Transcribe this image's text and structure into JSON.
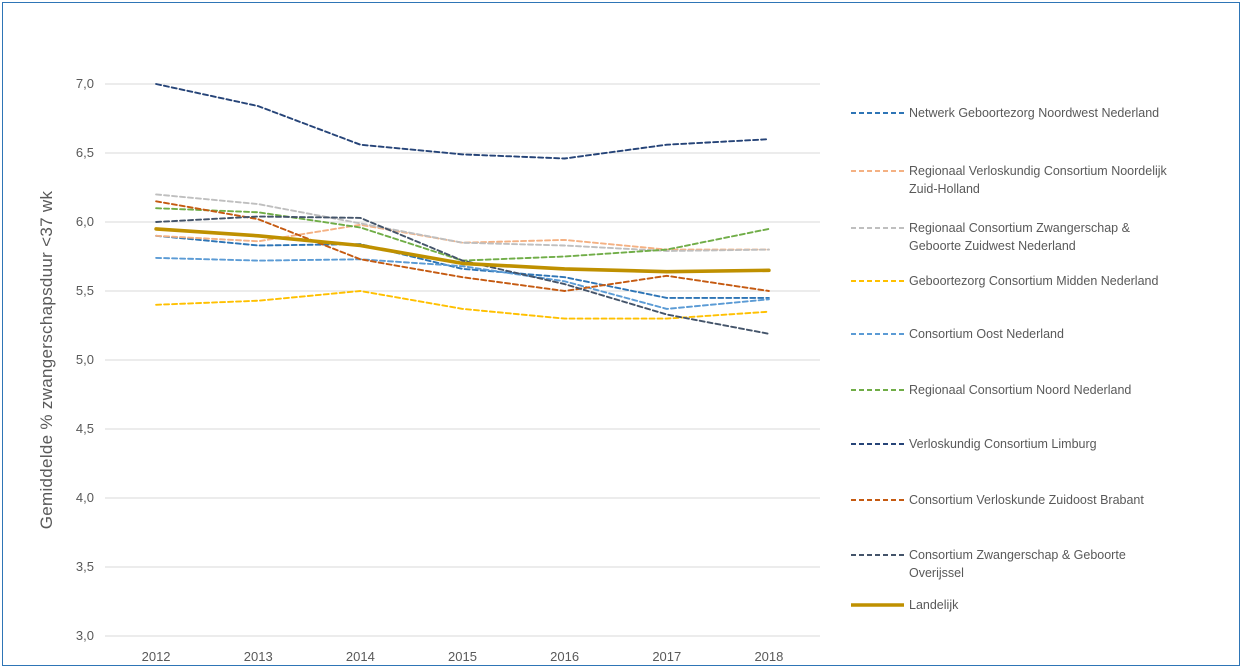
{
  "chart_data": {
    "type": "line",
    "title": "",
    "xlabel": "",
    "ylabel": "Gemiddelde  % zwangerschapsduur <37 wk",
    "x": [
      "2012",
      "2013",
      "2014",
      "2015",
      "2016",
      "2017",
      "2018"
    ],
    "ylim": [
      3.0,
      7.0
    ],
    "yticks": [
      "3,0",
      "3,5",
      "4,0",
      "4,5",
      "5,0",
      "5,5",
      "6,0",
      "6,5",
      "7,0"
    ],
    "grid": "horizontal",
    "legend_position": "right",
    "series": [
      {
        "name": "Netwerk Geboortezorg Noordwest Nederland",
        "legend_lines": [
          "Netwerk Geboortezorg Noordwest Nederland"
        ],
        "color": "#2e75b6",
        "style": "dashed",
        "values": [
          5.9,
          5.83,
          5.84,
          5.66,
          5.6,
          5.45,
          5.45
        ]
      },
      {
        "name": "Regionaal Verloskundig Consortium Noordelijk Zuid-Holland",
        "legend_lines": [
          "Regionaal Verloskundig Consortium Noordelijk",
          "Zuid-Holland"
        ],
        "color": "#f4b183",
        "style": "dashed",
        "values": [
          5.9,
          5.86,
          5.98,
          5.85,
          5.87,
          5.8,
          5.8
        ]
      },
      {
        "name": "Regionaal Consortium Zwangerschap & Geboorte Zuidwest Nederland",
        "legend_lines": [
          "Regionaal Consortium Zwangerschap &",
          "Geboorte Zuidwest Nederland"
        ],
        "color": "#bfbfbf",
        "style": "dashed",
        "values": [
          6.2,
          6.13,
          5.99,
          5.85,
          5.83,
          5.79,
          5.8
        ]
      },
      {
        "name": "Geboortezorg Consortium Midden Nederland",
        "legend_lines": [
          "Geboortezorg Consortium Midden Nederland"
        ],
        "color": "#ffc000",
        "style": "dashed",
        "values": [
          5.4,
          5.43,
          5.5,
          5.37,
          5.3,
          5.3,
          5.35
        ]
      },
      {
        "name": "Consortium Oost Nederland",
        "legend_lines": [
          "Consortium Oost Nederland"
        ],
        "color": "#5b9bd5",
        "style": "dashed",
        "values": [
          5.74,
          5.72,
          5.73,
          5.68,
          5.57,
          5.37,
          5.44
        ]
      },
      {
        "name": "Regionaal Consortium Noord Nederland",
        "legend_lines": [
          "Regionaal Consortium Noord Nederland"
        ],
        "color": "#70ad47",
        "style": "dashed",
        "values": [
          6.1,
          6.07,
          5.96,
          5.72,
          5.75,
          5.8,
          5.95
        ]
      },
      {
        "name": "Verloskundig Consortium Limburg",
        "legend_lines": [
          "Verloskundig Consortium Limburg"
        ],
        "color": "#264478",
        "style": "dashed",
        "values": [
          7.0,
          6.84,
          6.56,
          6.49,
          6.46,
          6.56,
          6.6
        ]
      },
      {
        "name": "Consortium Verloskunde Zuidoost Brabant",
        "legend_lines": [
          "Consortium Verloskunde Zuidoost Brabant"
        ],
        "color": "#c55a11",
        "style": "dashed",
        "values": [
          6.15,
          6.02,
          5.73,
          5.6,
          5.5,
          5.61,
          5.5
        ]
      },
      {
        "name": "Consortium Zwangerschap & Geboorte Overijssel",
        "legend_lines": [
          "Consortium Zwangerschap & Geboorte",
          "Overijssel"
        ],
        "color": "#44546a",
        "style": "dashed",
        "values": [
          6.0,
          6.04,
          6.03,
          5.72,
          5.55,
          5.33,
          5.19
        ]
      },
      {
        "name": "Landelijk",
        "legend_lines": [
          "Landelijk"
        ],
        "color": "#bf9000",
        "style": "solid",
        "values": [
          5.95,
          5.9,
          5.83,
          5.7,
          5.66,
          5.64,
          5.65
        ]
      }
    ]
  }
}
